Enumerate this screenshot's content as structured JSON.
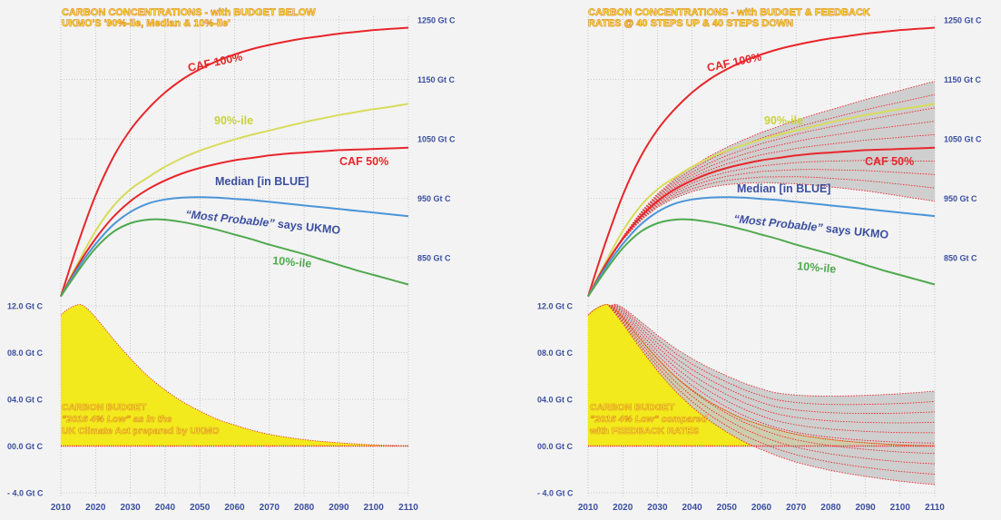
{
  "chart_data": [
    {
      "type": "line",
      "title": "CARBON CONCENTRATIONS - with BUDGET BELOW UKMO'S '90%-ile, Median & 10%-ile'",
      "title_lines": [
        "CARBON CONCENTRATIONS - with BUDGET BELOW",
        "UKMO'S '90%-ile, Median & 10%-ile'"
      ],
      "x_ticks": [
        "2010",
        "2020",
        "2030",
        "2040",
        "2050",
        "2060",
        "2070",
        "2080",
        "2090",
        "2100",
        "2110"
      ],
      "top_axis": {
        "ticks": [
          "850 Gt C",
          "950 Gt C",
          "1050 Gt C",
          "1150 Gt C",
          "1250 Gt C"
        ],
        "ylim": [
          785,
          1250
        ]
      },
      "bottom_axis": {
        "ticks": [
          "- 4.0 Gt C",
          "00.0 Gt C",
          "04.0 Gt C",
          "08.0 Gt C",
          "12.0 Gt C"
        ],
        "ylim": [
          -4,
          12
        ]
      },
      "grid": true,
      "x": [
        2010,
        2015,
        2020,
        2025,
        2030,
        2035,
        2040,
        2045,
        2050,
        2055,
        2060,
        2065,
        2070,
        2075,
        2080,
        2085,
        2090,
        2095,
        2100,
        2105,
        2110
      ],
      "series": [
        {
          "name": "CAF 100%",
          "color": "#e8262b",
          "values": [
            785,
            875,
            955,
            1018,
            1065,
            1100,
            1128,
            1150,
            1167,
            1181,
            1192,
            1201,
            1208,
            1214,
            1219,
            1223,
            1227,
            1230,
            1233,
            1235,
            1237
          ]
        },
        {
          "name": "90%-ile",
          "color": "#d7dc5a",
          "values": [
            785,
            842,
            895,
            936,
            965,
            985,
            1003,
            1018,
            1030,
            1040,
            1049,
            1057,
            1064,
            1071,
            1078,
            1084,
            1090,
            1095,
            1100,
            1104,
            1109
          ]
        },
        {
          "name": "CAF 50%",
          "color": "#e8262b",
          "values": [
            785,
            838,
            882,
            918,
            945,
            965,
            980,
            992,
            1001,
            1008,
            1014,
            1018,
            1022,
            1025,
            1027,
            1029,
            1031,
            1032,
            1033,
            1034,
            1035
          ]
        },
        {
          "name": "Median [in BLUE]",
          "color": "#4a95d8",
          "values": [
            785,
            833,
            873,
            905,
            927,
            941,
            948,
            951,
            952,
            951,
            949,
            947,
            944,
            941,
            938,
            935,
            932,
            929,
            926,
            923,
            920
          ]
        },
        {
          "name": "“Most Probable” says UKMO",
          "color": "#4a95d8",
          "values": [
            785,
            833,
            873,
            905,
            927,
            941,
            948,
            951,
            952,
            951,
            949,
            947,
            944,
            941,
            938,
            935,
            932,
            929,
            926,
            923,
            920
          ]
        },
        {
          "name": "10%-ile",
          "color": "#4fa94f",
          "values": [
            785,
            828,
            866,
            893,
            908,
            914,
            914,
            910,
            904,
            897,
            889,
            881,
            872,
            864,
            856,
            847,
            838,
            829,
            821,
            813,
            805
          ]
        }
      ],
      "series_labels": [
        {
          "text": "CAF 100%",
          "color": "#e8262b",
          "italic": false
        },
        {
          "text": "90%-ile",
          "color": "#c9d23a",
          "italic": false
        },
        {
          "text": "CAF 50%",
          "color": "#e8262b",
          "italic": false
        },
        {
          "text": "Median [in BLUE]",
          "color": "#3b4fa0",
          "italic": false
        },
        {
          "text": "“Most Probable” says UKMO",
          "color": "#3b4fa0",
          "italic": true,
          "mixed": true,
          "italic_part": "“Most Probable”",
          "normal_part": " says UKMO"
        },
        {
          "text": "10%-ile",
          "color": "#4fa94f",
          "italic": false
        }
      ],
      "budget": {
        "x": [
          2010,
          2012,
          2015,
          2017,
          2020,
          2025,
          2030,
          2035,
          2040,
          2045,
          2050,
          2055,
          2060,
          2065,
          2070,
          2075,
          2080,
          2085,
          2090,
          2095,
          2100,
          2105,
          2110
        ],
        "values": [
          11.2,
          11.7,
          12.1,
          11.9,
          11.0,
          9.2,
          7.5,
          6.0,
          4.8,
          3.8,
          3.0,
          2.3,
          1.8,
          1.35,
          1.0,
          0.75,
          0.55,
          0.4,
          0.28,
          0.18,
          0.1,
          0.05,
          0.02
        ],
        "label_lines": [
          "CARBON BUDGET",
          "“2016 4% Low” as in the",
          "UK Climate Act prepared by UKMO"
        ],
        "fill": "#f2ea1c"
      }
    },
    {
      "type": "line",
      "title": "CARBON CONCENTRATIONS - with BUDGET & FEEDBACK RATES @ 40 STEPS UP & 40 STEPS DOWN",
      "title_lines": [
        "CARBON CONCENTRATIONS - with BUDGET & FEEDBACK",
        "RATES @ 40 STEPS UP & 40 STEPS DOWN"
      ],
      "x_ticks": [
        "2010",
        "2020",
        "2030",
        "2040",
        "2050",
        "2060",
        "2070",
        "2080",
        "2090",
        "2100",
        "2110"
      ],
      "top_axis": {
        "ticks": [
          "850 Gt C",
          "950 Gt C",
          "1050 Gt C",
          "1150 Gt C",
          "1250 Gt C"
        ],
        "ylim": [
          785,
          1250
        ]
      },
      "bottom_axis": {
        "ticks": [
          "- 4.0 Gt C",
          "00.0 Gt C",
          "04.0 Gt C",
          "08.0 Gt C",
          "12.0 Gt C"
        ],
        "ylim": [
          -4,
          12
        ]
      },
      "grid": true,
      "x": [
        2010,
        2015,
        2020,
        2025,
        2030,
        2035,
        2040,
        2045,
        2050,
        2055,
        2060,
        2065,
        2070,
        2075,
        2080,
        2085,
        2090,
        2095,
        2100,
        2105,
        2110
      ],
      "series": [
        {
          "name": "CAF 100%",
          "color": "#e8262b",
          "values": [
            785,
            875,
            955,
            1018,
            1065,
            1100,
            1128,
            1150,
            1167,
            1181,
            1192,
            1201,
            1208,
            1214,
            1219,
            1223,
            1227,
            1230,
            1233,
            1235,
            1237
          ]
        },
        {
          "name": "90%-ile",
          "color": "#d7dc5a",
          "values": [
            785,
            842,
            895,
            936,
            965,
            985,
            1003,
            1018,
            1030,
            1040,
            1049,
            1057,
            1064,
            1071,
            1078,
            1084,
            1090,
            1095,
            1100,
            1104,
            1109
          ]
        },
        {
          "name": "CAF 50%",
          "color": "#e8262b",
          "values": [
            785,
            838,
            882,
            918,
            945,
            965,
            980,
            992,
            1001,
            1008,
            1014,
            1018,
            1022,
            1025,
            1027,
            1029,
            1031,
            1032,
            1033,
            1034,
            1035
          ]
        },
        {
          "name": "Median [in BLUE]",
          "color": "#4a95d8",
          "values": [
            785,
            833,
            873,
            905,
            927,
            941,
            948,
            951,
            952,
            951,
            949,
            947,
            944,
            941,
            938,
            935,
            932,
            929,
            926,
            923,
            920
          ]
        },
        {
          "name": "“Most Probable” says UKMO",
          "color": "#4a95d8",
          "values": [
            785,
            833,
            873,
            905,
            927,
            941,
            948,
            951,
            952,
            951,
            949,
            947,
            944,
            941,
            938,
            935,
            932,
            929,
            926,
            923,
            920
          ]
        },
        {
          "name": "10%-ile",
          "color": "#4fa94f",
          "values": [
            785,
            828,
            866,
            893,
            908,
            914,
            914,
            910,
            904,
            897,
            889,
            881,
            872,
            864,
            856,
            847,
            838,
            829,
            821,
            813,
            805
          ]
        }
      ],
      "series_labels": [
        {
          "text": "CAF 100%",
          "color": "#e8262b",
          "italic": false
        },
        {
          "text": "90%-ile",
          "color": "#c9d23a",
          "italic": false
        },
        {
          "text": "CAF 50%",
          "color": "#e8262b",
          "italic": false
        },
        {
          "text": "Median [in BLUE]",
          "color": "#3b4fa0",
          "italic": false
        },
        {
          "text": "“Most Probable” says UKMO",
          "color": "#3b4fa0",
          "italic": true,
          "mixed": true,
          "italic_part": "“Most Probable”",
          "normal_part": " says UKMO"
        },
        {
          "text": "10%-ile",
          "color": "#4fa94f",
          "italic": false
        }
      ],
      "feedback_fan": {
        "steps": 9,
        "concentration_upper_2110": 1147,
        "concentration_lower_2110": 945,
        "budget_upper_2110": 4.7,
        "budget_lower_2110": -3.3,
        "fill": "#c8c8c8",
        "line_color": "#e8262b"
      },
      "budget": {
        "x": [
          2010,
          2012,
          2015,
          2017,
          2020,
          2025,
          2030,
          2035,
          2040,
          2045,
          2050,
          2055,
          2060,
          2065,
          2070,
          2075,
          2080,
          2085,
          2090,
          2095,
          2100,
          2105,
          2110
        ],
        "values": [
          11.2,
          11.7,
          12.1,
          11.9,
          11.0,
          9.2,
          7.5,
          6.0,
          4.8,
          3.8,
          3.0,
          2.3,
          1.8,
          1.35,
          1.0,
          0.75,
          0.55,
          0.4,
          0.28,
          0.18,
          0.1,
          0.05,
          0.02
        ],
        "label_lines": [
          "CARBON BUDGET",
          "“2016 4% Low” compared",
          "with FEEDBACK RATES"
        ],
        "fill": "#f2ea1c"
      }
    }
  ]
}
